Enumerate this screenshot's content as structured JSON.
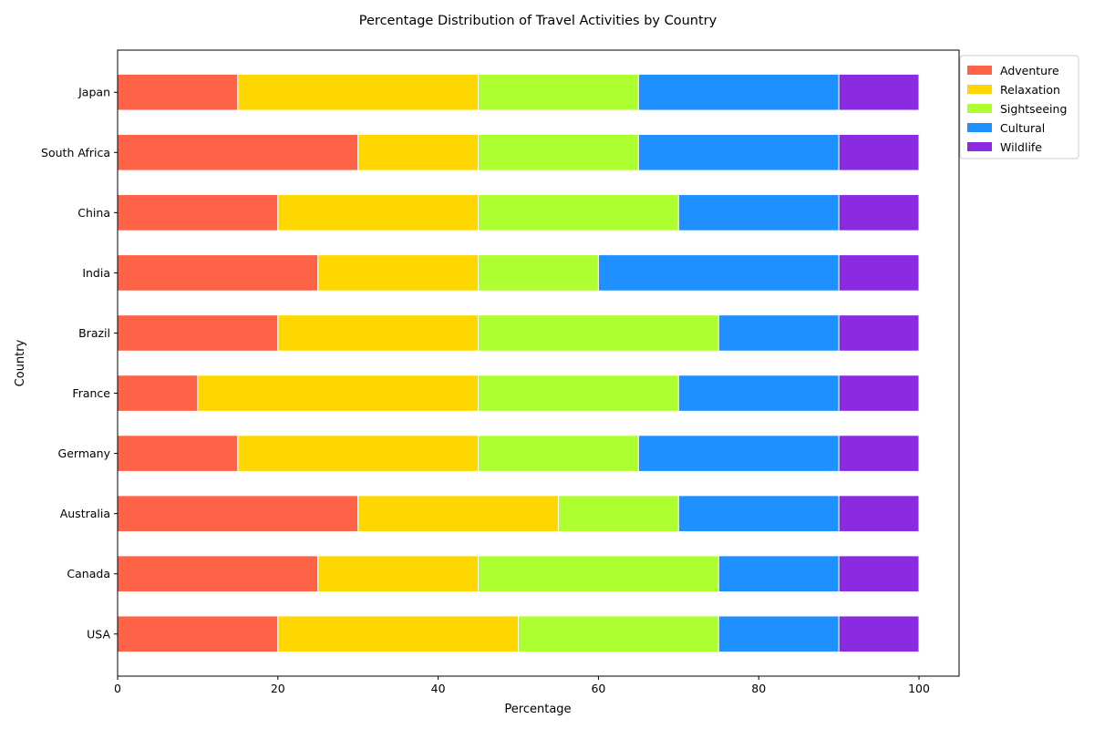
{
  "chart_data": {
    "type": "bar",
    "orientation": "horizontal",
    "stacked": true,
    "title": "Percentage Distribution of Travel Activities by Country",
    "xlabel": "Percentage",
    "ylabel": "Country",
    "xlim": [
      0,
      105
    ],
    "xticks": [
      0,
      20,
      40,
      60,
      80,
      100
    ],
    "grid": false,
    "legend_position": "top-right",
    "categories": [
      "USA",
      "Canada",
      "Australia",
      "Germany",
      "France",
      "Brazil",
      "India",
      "China",
      "South Africa",
      "Japan"
    ],
    "series": [
      {
        "name": "Adventure",
        "color": "#FF6347",
        "values": [
          20,
          25,
          30,
          15,
          10,
          20,
          25,
          20,
          30,
          15
        ]
      },
      {
        "name": "Relaxation",
        "color": "#FFD700",
        "values": [
          30,
          20,
          25,
          30,
          35,
          25,
          20,
          25,
          15,
          30
        ]
      },
      {
        "name": "Sightseeing",
        "color": "#ADFF2F",
        "values": [
          25,
          30,
          15,
          20,
          25,
          30,
          15,
          25,
          20,
          20
        ]
      },
      {
        "name": "Cultural",
        "color": "#1E90FF",
        "values": [
          15,
          15,
          20,
          25,
          20,
          15,
          30,
          20,
          25,
          25
        ]
      },
      {
        "name": "Wildlife",
        "color": "#8A2BE2",
        "values": [
          10,
          10,
          10,
          10,
          10,
          10,
          10,
          10,
          10,
          10
        ]
      }
    ]
  }
}
